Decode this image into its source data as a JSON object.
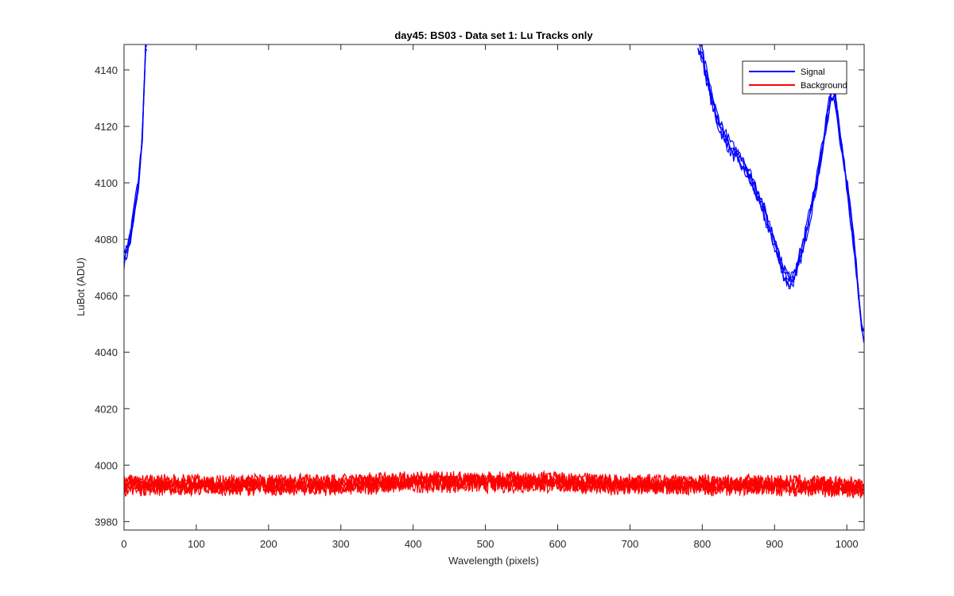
{
  "chart_data": {
    "type": "line",
    "title": "day45: BS03 - Data set 1: Lu Tracks only",
    "xlabel": "Wavelength (pixels)",
    "ylabel": "LuBot (ADU)",
    "xlim": [
      0,
      1024
    ],
    "ylim": [
      3977,
      4149
    ],
    "xticks": [
      0,
      100,
      200,
      300,
      400,
      500,
      600,
      700,
      800,
      900,
      1000
    ],
    "yticks": [
      3980,
      4000,
      4020,
      4040,
      4060,
      4080,
      4100,
      4120,
      4140
    ],
    "grid": false,
    "legend_position": "top-right",
    "series": [
      {
        "name": "Signal",
        "color": "#0000ff",
        "segments": [
          {
            "x": [
              0,
              5,
              10,
              15,
              20,
              25,
              28,
              30,
              32
            ],
            "y": [
              4073,
              4077,
              4082,
              4091,
              4100,
              4115,
              4135,
              4149,
              4149
            ]
          },
          {
            "x": [
              794,
              800,
              810,
              820,
              830,
              840,
              850,
              860,
              870,
              880,
              890,
              900,
              910,
              920,
              925,
              930,
              940,
              950,
              960,
              970,
              975,
              980,
              985,
              990,
              1000,
              1010,
              1020,
              1024
            ],
            "y": [
              4149,
              4145,
              4133,
              4123,
              4117,
              4112,
              4109,
              4105,
              4100,
              4094,
              4086,
              4079,
              4070,
              4065,
              4066,
              4069,
              4078,
              4090,
              4103,
              4118,
              4127,
              4132,
              4129,
              4118,
              4100,
              4078,
              4050,
              4045
            ]
          }
        ]
      },
      {
        "name": "Background",
        "color": "#ff0000",
        "segments": [
          {
            "x": [
              0,
              100,
              200,
              300,
              400,
              500,
              600,
              700,
              800,
              900,
              1024
            ],
            "y": [
              3993,
              3993,
              3993,
              3993,
              3994,
              3994,
              3994,
              3993,
              3993,
              3993,
              3992
            ]
          }
        ]
      }
    ]
  }
}
